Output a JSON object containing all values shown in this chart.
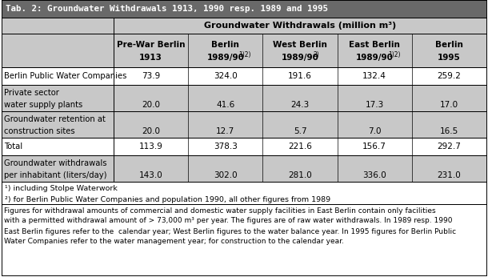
{
  "title": "Tab. 2: Groundwater Withdrawals 1913, 1990 resp. 1989 and 1995",
  "title_bg": "#696969",
  "title_color": "#ffffff",
  "header_bg": "#c8c8c8",
  "row_bg_even": "#ffffff",
  "row_bg_odd": "#ebebeb",
  "col_header_span": "Groundwater Withdrawals (million m³)",
  "col_headers_l1": [
    "Pre-War Berlin",
    "Berlin",
    "West Berlin",
    "East Berlin",
    "Berlin"
  ],
  "col_headers_l2": [
    "1913",
    "1989/90",
    "1989/90",
    "1989/90",
    "1995"
  ],
  "col_headers_sup": [
    "",
    "1)2)",
    "2)",
    "1)2)",
    ""
  ],
  "row_labels_l1": [
    "Berlin Public Water Companies",
    "Private sector",
    "Groundwater retention at",
    "Total",
    "Groundwater withdrawals"
  ],
  "row_labels_l2": [
    null,
    "water supply plants",
    "construction sites",
    null,
    "per inhabitant (liters/day)"
  ],
  "data": [
    [
      "73.9",
      "324.0",
      "191.6",
      "132.4",
      "259.2"
    ],
    [
      "20.0",
      "41.6",
      "24.3",
      "17.3",
      "17.0"
    ],
    [
      "20.0",
      "12.7",
      "5.7",
      "7.0",
      "16.5"
    ],
    [
      "113.9",
      "378.3",
      "221.6",
      "156.7",
      "292.7"
    ],
    [
      "143.0",
      "302.0",
      "281.0",
      "336.0",
      "231.0"
    ]
  ],
  "fn1": "¹) including Stolpe Waterwork",
  "fn2": "²) for Berlin Public Water Companies and population 1990, all other figures from 1989",
  "footer_lines": [
    "Figures for withdrawal amounts of commercial and domestic water supply facilities in East Berlin contain only facilities",
    "with a permitted withdrawal amount of > 73,000 m³ per year. The figures are of raw water withdrawals. In 1989 resp. 1990",
    "East Berlin figures refer to the  calendar year; West Berlin figures to the water balance year. In 1995 figures for Berlin Public",
    "Water Companies refer to the water management year; for construction to the calendar year."
  ]
}
